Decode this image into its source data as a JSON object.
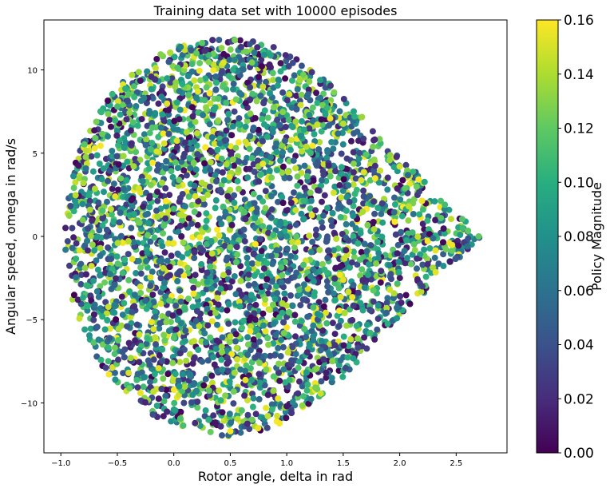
{
  "chart_data": {
    "type": "scatter",
    "title": "Training data set with 10000 episodes",
    "xlabel": "Rotor angle, delta in rad",
    "ylabel": "Angular speed, omega in rad/s",
    "xlim": [
      -1.15,
      2.95
    ],
    "ylim": [
      -13.0,
      13.0
    ],
    "xticks": [
      "−1.0",
      "−0.5",
      "0.0",
      "0.5",
      "1.0",
      "1.5",
      "2.0",
      "2.5"
    ],
    "xtick_values": [
      -1.0,
      -0.5,
      0.0,
      0.5,
      1.0,
      1.5,
      2.0,
      2.5
    ],
    "yticks": [
      "−10",
      "−5",
      "0",
      "5",
      "10"
    ],
    "ytick_values": [
      -10,
      -5,
      0,
      5,
      10
    ],
    "grid": false,
    "colormap": "viridis",
    "colorbar": {
      "label": "Policy Magnitude",
      "range": [
        0.0,
        0.16
      ],
      "ticks": [
        "0.00",
        "0.02",
        "0.04",
        "0.06",
        "0.08",
        "0.10",
        "0.12",
        "0.14",
        "0.16"
      ],
      "tick_values": [
        0.0,
        0.02,
        0.04,
        0.06,
        0.08,
        0.1,
        0.12,
        0.14,
        0.16
      ]
    },
    "region": {
      "description_points": [
        {
          "delta": -0.97,
          "omega": 0.0
        },
        {
          "delta": 0.42,
          "omega": 12.0
        },
        {
          "delta": 0.45,
          "omega": -12.0
        },
        {
          "delta": 2.72,
          "omega": 0.0
        },
        {
          "delta": 2.0,
          "omega": 4.5
        },
        {
          "delta": 2.0,
          "omega": -4.5
        }
      ]
    },
    "series": [
      {
        "points": [
          [
            -0.9,
            0.5,
            0.03
          ],
          [
            -0.8,
            3.2,
            0.14
          ],
          [
            -0.7,
            -4.1,
            0.06
          ],
          [
            -0.5,
            7.8,
            0.11
          ],
          [
            -0.4,
            -8.2,
            0.15
          ],
          [
            -0.2,
            9.6,
            0.02
          ],
          [
            0.0,
            -10.4,
            0.09
          ],
          [
            0.2,
            11.0,
            0.12
          ],
          [
            0.4,
            11.8,
            0.05
          ],
          [
            0.5,
            -11.7,
            0.16
          ],
          [
            0.8,
            10.9,
            0.08
          ],
          [
            1.0,
            -10.2,
            0.01
          ],
          [
            1.2,
            9.3,
            0.13
          ],
          [
            1.4,
            -8.5,
            0.07
          ],
          [
            1.6,
            7.2,
            0.1
          ],
          [
            1.8,
            -5.6,
            0.04
          ],
          [
            2.0,
            4.2,
            0.15
          ],
          [
            2.2,
            -3.0,
            0.03
          ],
          [
            2.4,
            1.9,
            0.11
          ],
          [
            2.6,
            -0.6,
            0.06
          ],
          [
            2.7,
            0.0,
            0.12
          ],
          [
            1.0,
            0.0,
            0.08
          ],
          [
            0.3,
            2.5,
            0.14
          ],
          [
            0.6,
            -3.5,
            0.02
          ]
        ]
      }
    ]
  }
}
